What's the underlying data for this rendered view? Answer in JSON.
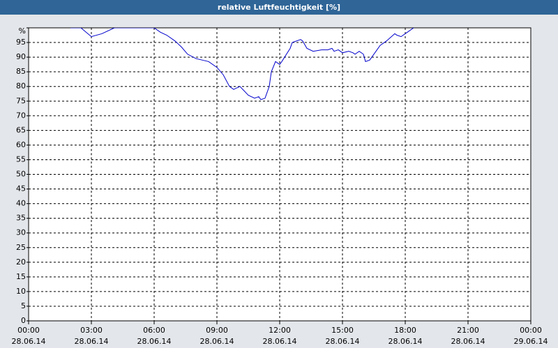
{
  "chart_data": {
    "type": "line",
    "title": "relative Luftfeuchtigkeit [%]",
    "x": [
      2.0,
      2.5,
      3.0,
      3.5,
      4.1,
      6.0,
      6.3,
      6.6,
      7.0,
      7.3,
      7.6,
      8.0,
      8.3,
      8.6,
      9.0,
      9.3,
      9.6,
      9.8,
      10.1,
      10.5,
      10.8,
      11.0,
      11.1,
      11.3,
      11.5,
      11.6,
      11.8,
      12.0,
      12.1,
      12.5,
      12.6,
      13.0,
      13.1,
      13.3,
      13.6,
      14.0,
      14.3,
      14.5,
      14.6,
      14.8,
      15.0,
      15.3,
      15.5,
      15.6,
      15.8,
      16.0,
      16.1,
      16.3,
      16.6,
      16.8,
      17.1,
      17.5,
      17.6,
      17.8,
      18.1,
      18.4
    ],
    "series": [
      {
        "color": "#0000cc",
        "values": [
          100,
          100,
          97,
          98,
          100,
          100,
          98.5,
          97.5,
          95.5,
          93.5,
          91,
          89.5,
          89,
          88.5,
          86.5,
          84,
          80,
          79,
          80,
          77,
          76,
          76.5,
          75.5,
          76,
          80,
          85,
          88.5,
          87.5,
          88.5,
          93,
          95,
          96,
          95.5,
          93,
          92,
          92.5,
          92.5,
          93,
          92,
          92.5,
          91.5,
          92,
          91.5,
          91,
          92,
          91,
          88.5,
          89,
          92,
          94,
          95.5,
          98,
          97.5,
          97,
          98.5,
          100
        ]
      }
    ],
    "xlim": [
      0,
      24
    ],
    "xticks": [
      {
        "value": 0,
        "label": "00:00"
      },
      {
        "value": 3,
        "label": "03:00"
      },
      {
        "value": 6,
        "label": "06:00"
      },
      {
        "value": 9,
        "label": "09:00"
      },
      {
        "value": 12,
        "label": "12:00"
      },
      {
        "value": 15,
        "label": "15:00"
      },
      {
        "value": 18,
        "label": "18:00"
      },
      {
        "value": 21,
        "label": "21:00"
      },
      {
        "value": 24,
        "label": "00:00"
      }
    ],
    "xtick_dates": [
      "28.06.14",
      "28.06.14",
      "28.06.14",
      "28.06.14",
      "28.06.14",
      "28.06.14",
      "28.06.14",
      "28.06.14",
      "29.06.14"
    ],
    "ylim": [
      0,
      100
    ],
    "yticks": [
      0,
      5,
      10,
      15,
      20,
      25,
      30,
      35,
      40,
      45,
      50,
      55,
      60,
      65,
      70,
      75,
      80,
      85,
      90,
      95,
      {
        "value": 100,
        "label": "%"
      }
    ],
    "grid": true
  }
}
